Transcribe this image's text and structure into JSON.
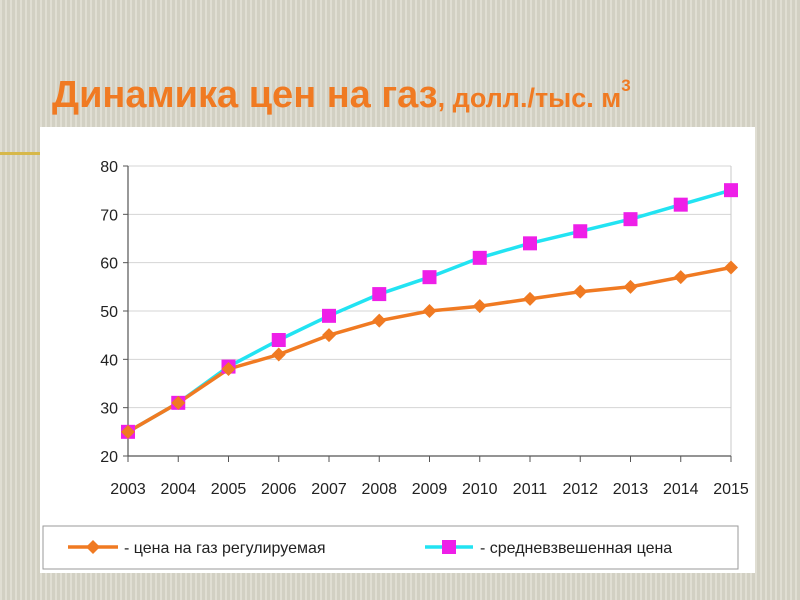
{
  "title": {
    "main": "Динамика цен на газ",
    "unit": ", долл./тыс. м",
    "superscript": "3"
  },
  "chart_data": {
    "type": "line",
    "x": [
      "2003",
      "2004",
      "2005",
      "2006",
      "2007",
      "2008",
      "2009",
      "2010",
      "2011",
      "2012",
      "2013",
      "2014",
      "2015"
    ],
    "ylim": [
      20,
      80
    ],
    "yticks": [
      20,
      30,
      40,
      50,
      60,
      70,
      80
    ],
    "grid": true,
    "legend": "bottom",
    "series": [
      {
        "name": "- цена на газ регулируемая",
        "color": "#f07a22",
        "marker": "diamond",
        "values": [
          25,
          31,
          38,
          41,
          45,
          48,
          50,
          51,
          52.5,
          54,
          55,
          57,
          59
        ]
      },
      {
        "name": "- средневзвешенная цена",
        "color": "#22e3f2",
        "marker": "square",
        "marker_color": "#ee1fe8",
        "values": [
          25,
          31,
          38.5,
          44,
          49,
          53.5,
          57,
          61,
          64,
          66.5,
          69,
          72,
          75
        ]
      }
    ]
  }
}
